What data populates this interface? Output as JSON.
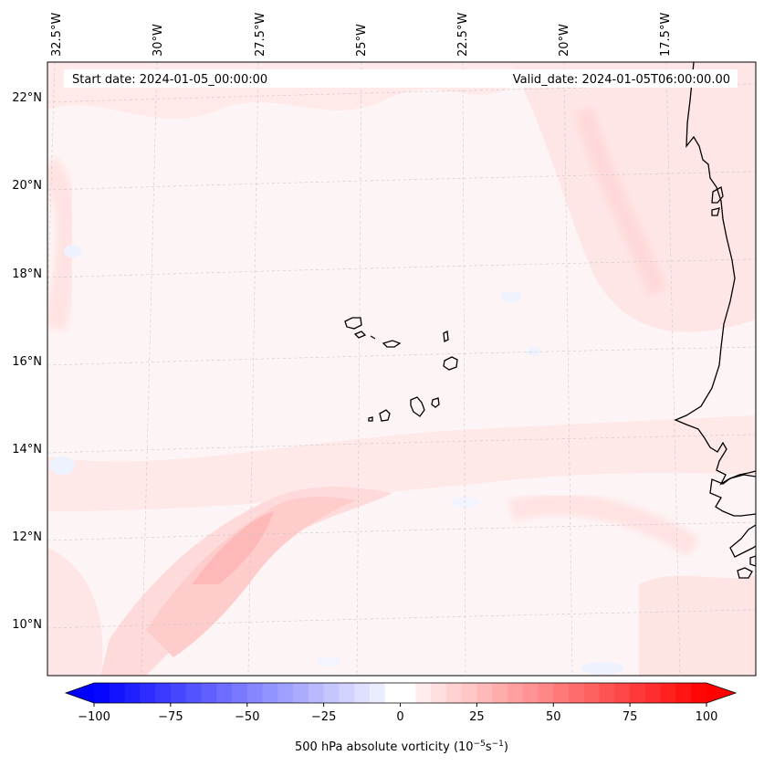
{
  "map": {
    "start_label": "Start date: 2024-01-05_00:00:00",
    "valid_label": "Valid_date: 2024-01-05T06:00:00.00",
    "lon_labels": [
      "32.5°W",
      "30°W",
      "27.5°W",
      "25°W",
      "22.5°W",
      "20°W",
      "17.5°W"
    ],
    "lat_labels": [
      "22°N",
      "20°N",
      "18°N",
      "16°N",
      "14°N",
      "12°N",
      "10°N"
    ],
    "field": "500 hPa absolute vorticity",
    "colors": {
      "coast": "#000000",
      "grid": "#c8c8c8",
      "background": "#fdf5f5",
      "pos_light": "#ffe6e6",
      "pos_mid": "#ffd2d2",
      "pos_strong": "#ffbcbc",
      "neg_light": "#eef2ff"
    }
  },
  "colorbar": {
    "min": -100,
    "max": 100,
    "step": 5,
    "ticks": [
      "−100",
      "−75",
      "−50",
      "−25",
      "0",
      "25",
      "50",
      "75",
      "100"
    ],
    "tick_values": [
      -100,
      -75,
      -50,
      -25,
      0,
      25,
      50,
      75,
      100
    ],
    "label": "500 hPa absolute vorticity (10",
    "label_exp1": "−5",
    "label_mid": "s",
    "label_exp2": "−1",
    "label_end": ")",
    "neg_color": "#0000ff",
    "pos_color": "#ff0000"
  }
}
